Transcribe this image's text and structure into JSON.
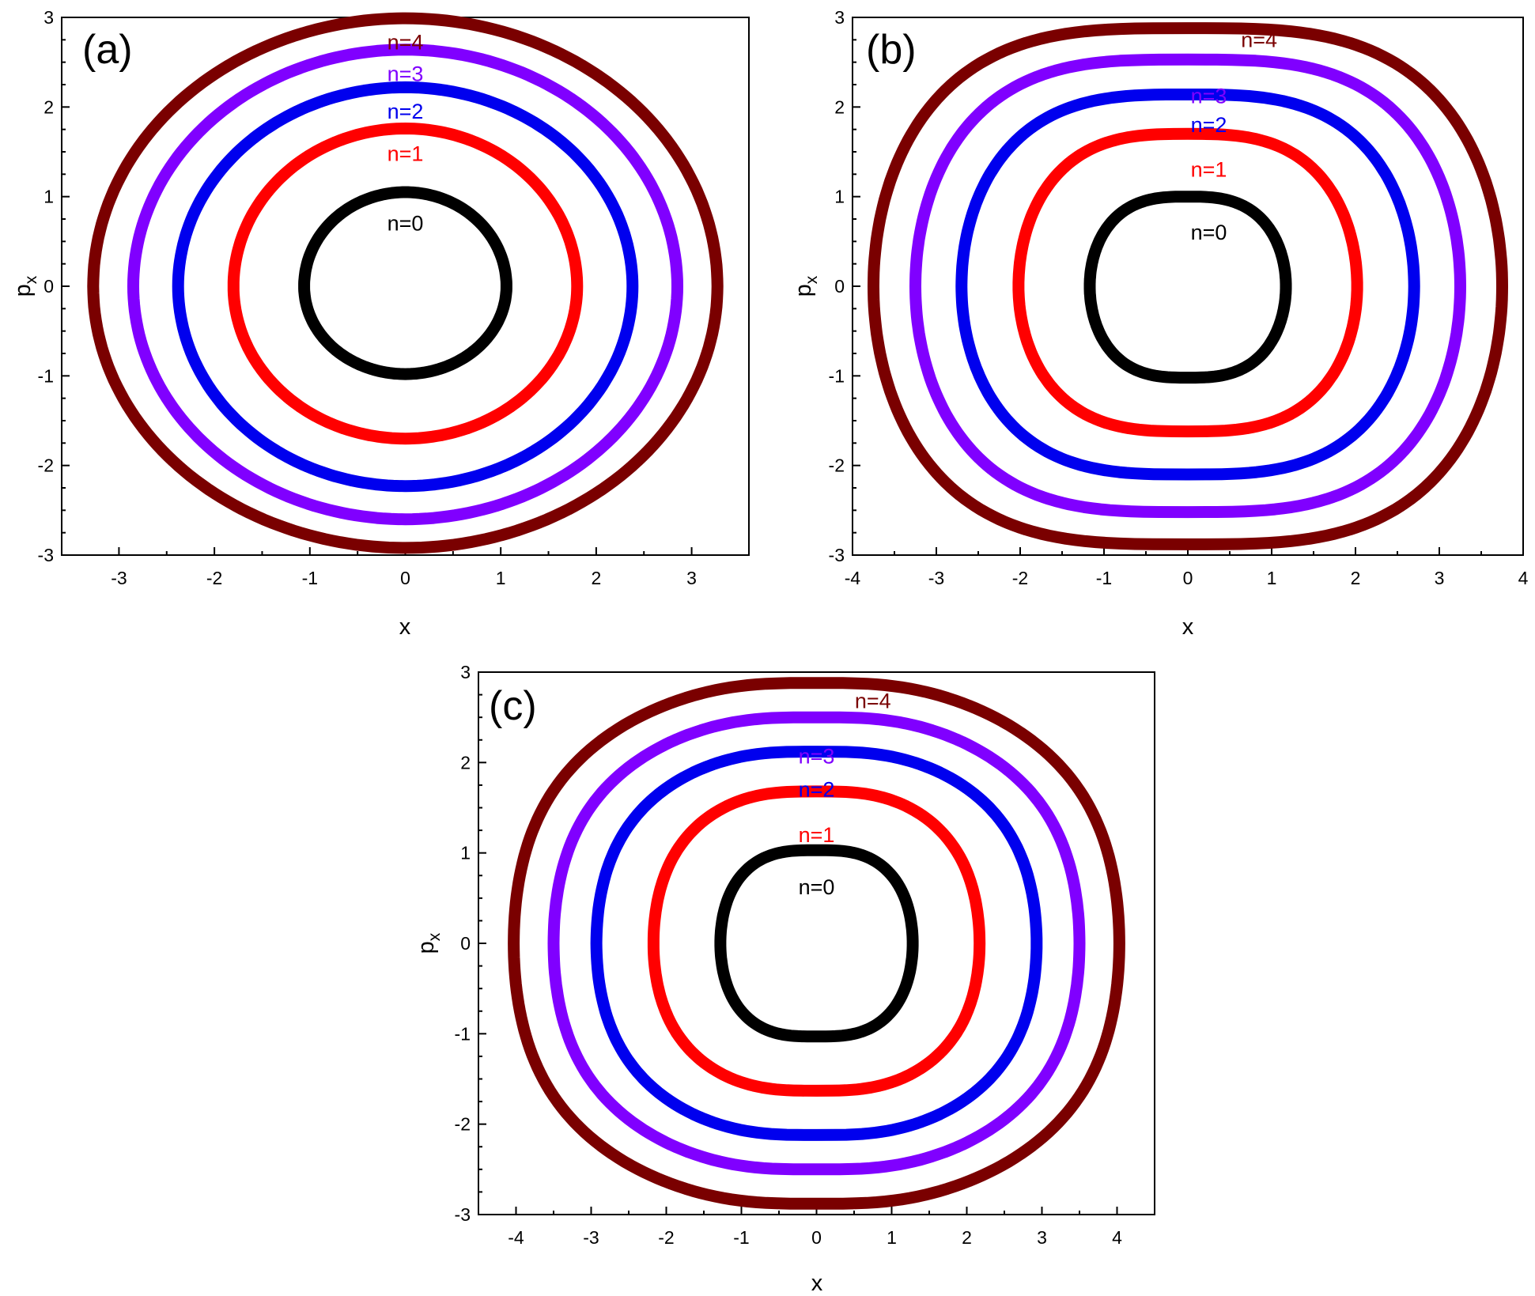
{
  "chart_data": [
    {
      "type": "line",
      "panel": "(a)",
      "xlabel": "x",
      "ylabel": "p",
      "ylabel_subscript": "x",
      "xlim": [
        -3.6,
        3.6
      ],
      "ylim": [
        -3,
        3
      ],
      "xticks": [
        "-3",
        "-2",
        "-1",
        "0",
        "1",
        "2",
        "3"
      ],
      "yticks": [
        "-3",
        "-2",
        "-1",
        "0",
        "1",
        "2",
        "3"
      ],
      "series": [
        {
          "name": "n=0",
          "color": "#000000",
          "x_half_width": 1.06,
          "p_top": 1.05,
          "p_bottom": -0.98,
          "cusp": 0.0,
          "waist": 0.0
        },
        {
          "name": "n=1",
          "color": "#ff0000",
          "x_half_width": 1.8,
          "p_top": 1.76,
          "p_bottom": -1.7,
          "cusp": 0.0,
          "waist": 0.0
        },
        {
          "name": "n=2",
          "color": "#0000ee",
          "x_half_width": 2.38,
          "p_top": 2.22,
          "p_bottom": -2.23,
          "cusp": 0.0,
          "waist": 0.0
        },
        {
          "name": "n=3",
          "color": "#8000ff",
          "x_half_width": 2.85,
          "p_top": 2.64,
          "p_bottom": -2.6,
          "cusp": 0.0,
          "waist": 0.0
        },
        {
          "name": "n=4",
          "color": "#7a0000",
          "x_half_width": 3.27,
          "p_top": 2.99,
          "p_bottom": -2.92,
          "cusp": 0.0,
          "waist": 0.0
        }
      ]
    },
    {
      "type": "line",
      "panel": "(b)",
      "xlabel": "x",
      "ylabel": "p",
      "ylabel_subscript": "x",
      "xlim": [
        -4,
        4
      ],
      "ylim": [
        -3,
        3
      ],
      "xticks": [
        "-4",
        "-3",
        "-2",
        "-1",
        "0",
        "1",
        "2",
        "3",
        "4"
      ],
      "yticks": [
        "-3",
        "-2",
        "-1",
        "0",
        "1",
        "2",
        "3"
      ],
      "series": [
        {
          "name": "n=0",
          "color": "#000000",
          "x_half_width": 1.17,
          "p_top": 1.0,
          "p_bottom": -1.02,
          "cusp": 0.55,
          "waist": 0.0
        },
        {
          "name": "n=1",
          "color": "#ff0000",
          "x_half_width": 2.02,
          "p_top": 1.7,
          "p_bottom": -1.62,
          "cusp": 0.6,
          "waist": 0.0
        },
        {
          "name": "n=2",
          "color": "#0000ee",
          "x_half_width": 2.7,
          "p_top": 2.14,
          "p_bottom": -2.1,
          "cusp": 0.65,
          "waist": 0.0
        },
        {
          "name": "n=3",
          "color": "#8000ff",
          "x_half_width": 3.25,
          "p_top": 2.53,
          "p_bottom": -2.52,
          "cusp": 0.7,
          "waist": 0.0
        },
        {
          "name": "n=4",
          "color": "#7a0000",
          "x_half_width": 3.75,
          "p_top": 2.88,
          "p_bottom": -2.88,
          "cusp": 0.72,
          "waist": 0.0
        }
      ]
    },
    {
      "type": "line",
      "panel": "(c)",
      "xlabel": "x",
      "ylabel": "p",
      "ylabel_subscript": "x",
      "xlim": [
        -4.5,
        4.5
      ],
      "ylim": [
        -3,
        3
      ],
      "xticks": [
        "-4",
        "-3",
        "-2",
        "-1",
        "0",
        "1",
        "2",
        "3",
        "4"
      ],
      "yticks": [
        "-3",
        "-2",
        "-1",
        "0",
        "1",
        "2",
        "3"
      ],
      "series": [
        {
          "name": "n=0",
          "color": "#000000",
          "x_half_width": 1.28,
          "p_top": 1.03,
          "p_bottom": -1.03,
          "cusp": 0.7,
          "waist": 0.08
        },
        {
          "name": "n=1",
          "color": "#ff0000",
          "x_half_width": 2.17,
          "p_top": 1.68,
          "p_bottom": -1.63,
          "cusp": 0.72,
          "waist": 0.18
        },
        {
          "name": "n=2",
          "color": "#0000ee",
          "x_half_width": 2.93,
          "p_top": 2.12,
          "p_bottom": -2.12,
          "cusp": 0.75,
          "waist": 0.25
        },
        {
          "name": "n=3",
          "color": "#8000ff",
          "x_half_width": 3.5,
          "p_top": 2.5,
          "p_bottom": -2.5,
          "cusp": 0.78,
          "waist": 0.3
        },
        {
          "name": "n=4",
          "color": "#7a0000",
          "x_half_width": 4.03,
          "p_top": 2.88,
          "p_bottom": -2.88,
          "cusp": 0.8,
          "waist": 0.34
        }
      ]
    }
  ]
}
